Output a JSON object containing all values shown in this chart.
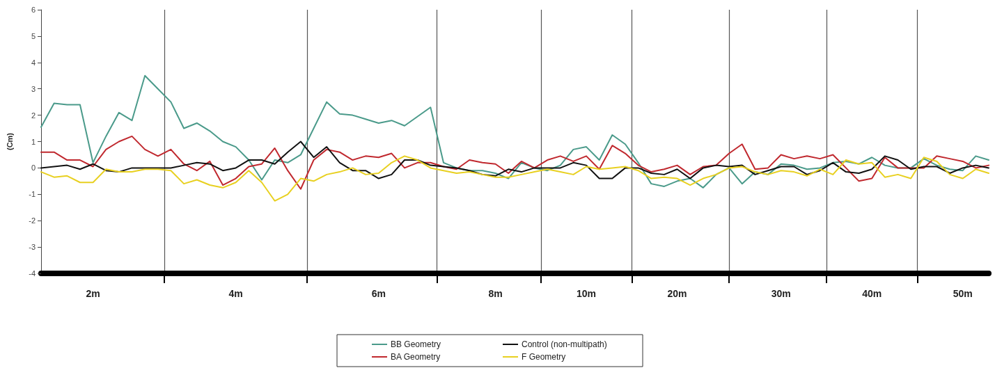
{
  "chart_data": {
    "type": "line",
    "ylabel": "(Cm)",
    "categories": [
      null,
      null,
      null,
      null,
      "2m",
      null,
      null,
      null,
      null,
      null,
      null,
      null,
      null,
      null,
      null,
      "4m",
      null,
      null,
      null,
      null,
      null,
      null,
      null,
      null,
      null,
      null,
      "6m",
      null,
      null,
      null,
      null,
      null,
      null,
      null,
      null,
      "8m",
      null,
      null,
      null,
      null,
      null,
      null,
      "10m",
      null,
      null,
      null,
      null,
      null,
      null,
      "20m",
      null,
      null,
      null,
      null,
      null,
      null,
      null,
      "30m",
      null,
      null,
      null,
      null,
      null,
      null,
      "40m",
      null,
      null,
      null,
      null,
      null,
      null,
      "50m",
      null,
      null
    ],
    "series": [
      {
        "name": "BB Geometry",
        "color": "#4a9a8a",
        "values": [
          1.55,
          2.45,
          2.4,
          2.4,
          0.2,
          1.2,
          2.1,
          1.8,
          3.5,
          3.0,
          2.5,
          1.5,
          1.7,
          1.4,
          1.0,
          0.8,
          0.3,
          -0.45,
          0.3,
          0.2,
          0.5,
          1.5,
          2.5,
          2.05,
          2.0,
          1.85,
          1.7,
          1.8,
          1.6,
          1.95,
          2.3,
          0.2,
          0.0,
          -0.1,
          -0.1,
          -0.2,
          -0.4,
          0.2,
          0.0,
          -0.1,
          0.1,
          0.7,
          0.8,
          0.3,
          1.25,
          0.9,
          0.2,
          -0.6,
          -0.7,
          -0.5,
          -0.4,
          -0.75,
          -0.25,
          0.0,
          -0.6,
          -0.15,
          -0.25,
          0.15,
          0.1,
          -0.05,
          0.0,
          0.2,
          0.25,
          0.15,
          0.4,
          0.1,
          0.0,
          0.0,
          0.35,
          0.1,
          -0.05,
          -0.1,
          0.45,
          0.3
        ]
      },
      {
        "name": "BA Geometry",
        "color": "#c0282e",
        "values": [
          0.6,
          0.6,
          0.3,
          0.3,
          0.05,
          0.7,
          1.0,
          1.2,
          0.7,
          0.45,
          0.7,
          0.15,
          -0.1,
          0.25,
          -0.65,
          -0.4,
          0.05,
          0.15,
          0.75,
          -0.1,
          -0.8,
          0.3,
          0.7,
          0.6,
          0.3,
          0.45,
          0.4,
          0.55,
          0.0,
          0.2,
          0.2,
          0.05,
          -0.05,
          0.3,
          0.2,
          0.15,
          -0.2,
          0.25,
          0.0,
          0.3,
          0.45,
          0.25,
          0.45,
          -0.05,
          0.85,
          0.55,
          0.1,
          -0.15,
          -0.05,
          0.1,
          -0.25,
          0.05,
          0.1,
          0.55,
          0.9,
          -0.05,
          0.0,
          0.5,
          0.35,
          0.45,
          0.35,
          0.5,
          0.0,
          -0.5,
          -0.4,
          0.4,
          0.0,
          0.0,
          0.0,
          0.45,
          0.35,
          0.25,
          0.0,
          0.1
        ]
      },
      {
        "name": "Control (non-multipath)",
        "color": "#111111",
        "values": [
          0.0,
          0.05,
          0.1,
          -0.05,
          0.15,
          -0.1,
          -0.15,
          0.0,
          0.0,
          0.0,
          0.0,
          0.1,
          0.2,
          0.15,
          -0.1,
          0.0,
          0.3,
          0.3,
          0.15,
          0.6,
          1.0,
          0.4,
          0.8,
          0.2,
          -0.1,
          -0.1,
          -0.4,
          -0.25,
          0.3,
          0.3,
          0.1,
          0.05,
          0.0,
          -0.1,
          -0.25,
          -0.3,
          -0.05,
          -0.15,
          0.0,
          0.0,
          0.0,
          0.2,
          0.1,
          -0.4,
          -0.4,
          0.0,
          0.0,
          -0.2,
          -0.25,
          -0.05,
          -0.4,
          0.0,
          0.1,
          0.05,
          0.1,
          -0.25,
          -0.1,
          0.05,
          0.05,
          -0.25,
          -0.1,
          0.2,
          -0.15,
          -0.2,
          -0.05,
          0.45,
          0.3,
          -0.05,
          0.05,
          0.05,
          -0.2,
          0.0,
          0.1,
          0.0
        ]
      },
      {
        "name": "F Geometry",
        "color": "#e8d020",
        "values": [
          -0.15,
          -0.35,
          -0.3,
          -0.55,
          -0.55,
          -0.05,
          -0.15,
          -0.15,
          -0.05,
          -0.05,
          -0.1,
          -0.6,
          -0.45,
          -0.65,
          -0.75,
          -0.55,
          -0.1,
          -0.55,
          -1.25,
          -1.0,
          -0.4,
          -0.5,
          -0.25,
          -0.15,
          0.0,
          -0.25,
          -0.2,
          0.2,
          0.45,
          0.3,
          0.0,
          -0.1,
          -0.2,
          -0.15,
          -0.25,
          -0.35,
          -0.35,
          -0.25,
          -0.15,
          -0.05,
          -0.15,
          -0.25,
          0.05,
          -0.05,
          0.0,
          0.05,
          -0.1,
          -0.4,
          -0.35,
          -0.4,
          -0.65,
          -0.4,
          -0.25,
          0.0,
          0.05,
          -0.15,
          -0.25,
          -0.1,
          -0.15,
          -0.3,
          -0.05,
          -0.25,
          0.3,
          0.15,
          0.2,
          -0.35,
          -0.25,
          -0.4,
          0.4,
          0.25,
          -0.25,
          -0.4,
          -0.05,
          -0.2
        ]
      }
    ],
    "ylim": [
      -4,
      6
    ],
    "yticks": [
      -4,
      -3,
      -2,
      -1,
      0,
      1,
      2,
      3,
      4,
      5,
      6
    ],
    "grid": "x",
    "legend": "bottom",
    "marker": "none",
    "line_style": "solid"
  }
}
